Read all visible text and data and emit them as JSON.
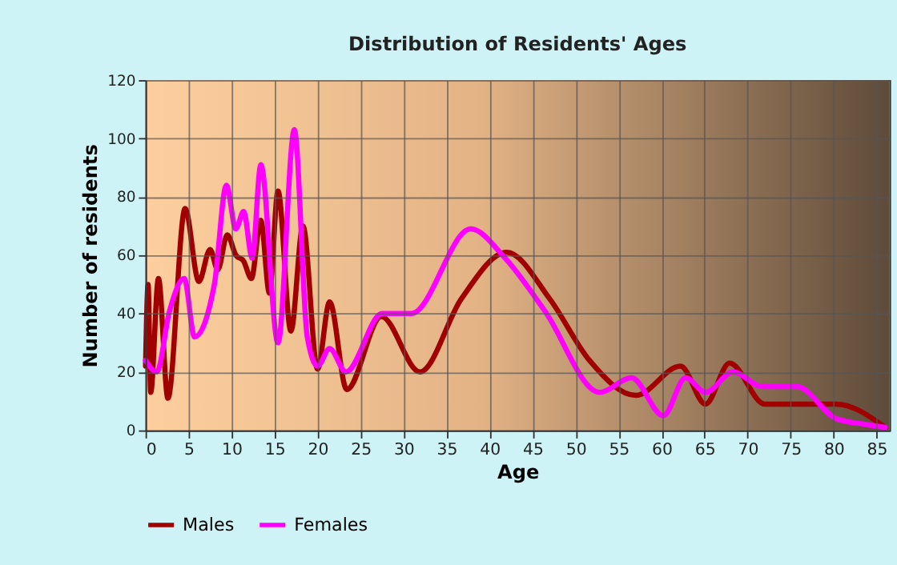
{
  "chart_data": {
    "type": "line",
    "title": "Distribution of Residents' Ages",
    "xlabel": "Age",
    "ylabel": "Number of residents",
    "xlim": [
      0,
      86.5
    ],
    "xticks": [
      0,
      5,
      10,
      15,
      20,
      25,
      30,
      35,
      40,
      45,
      50,
      55,
      60,
      65,
      70,
      75,
      80,
      85
    ],
    "ylim": [
      0,
      120
    ],
    "yticks": [
      0,
      20,
      40,
      60,
      80,
      100,
      120
    ],
    "grid": true,
    "legend": "bottom",
    "marker": "none",
    "line_style": "solid",
    "series": [
      {
        "name": "Males",
        "color": "#a00000",
        "x": [
          0,
          0.3,
          0.6,
          1.5,
          2.6,
          4.6,
          6.2,
          7.5,
          8.4,
          9.5,
          10.5,
          11.4,
          12.3,
          13.4,
          14.4,
          15.4,
          16.9,
          18.3,
          20,
          21.4,
          23.4,
          27.4,
          31.9,
          36.7,
          42,
          47,
          51.6,
          57,
          62.2,
          65.1,
          67.9,
          72,
          80.3,
          86
        ],
        "values": [
          22,
          50,
          13,
          52,
          11,
          76,
          51,
          62,
          55,
          67,
          60,
          58,
          52,
          72,
          47,
          82,
          34,
          70,
          21,
          44,
          14,
          39,
          20,
          45,
          61,
          45,
          24,
          12,
          22,
          9,
          23,
          9,
          9,
          1
        ]
      },
      {
        "name": "Females",
        "color": "#ff00ff",
        "x": [
          0,
          1.3,
          2.8,
          4.5,
          5.7,
          8,
          9.4,
          10.5,
          11.4,
          12.4,
          13.4,
          15.4,
          17.3,
          18.8,
          20,
          21.4,
          23.3,
          27.5,
          30.9,
          37.8,
          41.8,
          46.4,
          52.8,
          56.5,
          60.2,
          62.8,
          65.1,
          68.3,
          71.7,
          75.7,
          80.3,
          83.8,
          86
        ],
        "values": [
          24,
          20,
          41,
          52,
          32,
          50,
          84,
          69,
          75,
          59,
          91,
          30,
          103,
          32,
          22,
          28,
          20,
          40,
          40,
          69,
          59,
          41,
          13,
          18,
          5,
          18,
          13,
          20,
          15,
          15,
          4,
          2,
          1
        ]
      }
    ]
  }
}
